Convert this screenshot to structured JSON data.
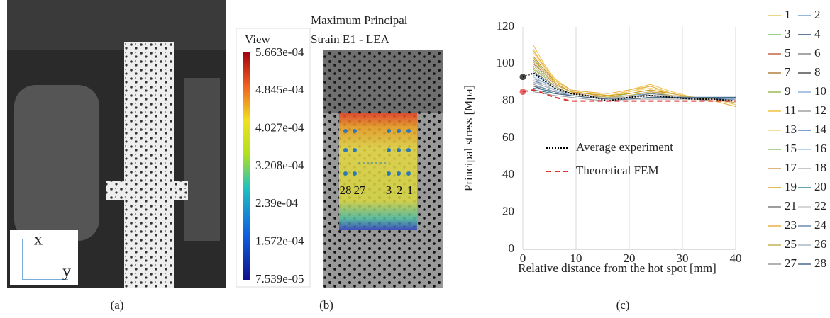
{
  "panels": {
    "a": {
      "caption": "(a)",
      "axis_x": "x",
      "axis_y": "y"
    },
    "b": {
      "caption": "(b)",
      "title_lines": [
        "Maximum Principal",
        "Strain E1 - LEA"
      ],
      "colorbar_title": "View",
      "colorbar_labels": [
        "5.663e-04",
        "4.845e-04",
        "4.027e-04",
        "3.208e-04",
        "2.39e-04",
        "1.572e-04",
        "7.539e-05"
      ],
      "point_labels": [
        "28",
        "27",
        "3",
        "2",
        "1"
      ]
    },
    "c": {
      "caption": "(c)"
    }
  },
  "chart_data": {
    "type": "line",
    "xlabel": "Relative distance from the hot spot [mm]",
    "ylabel": "Principal stress [Mpa]",
    "xlim": [
      0,
      40
    ],
    "xticks": [
      0,
      10,
      20,
      30,
      40
    ],
    "ylim": [
      0,
      120
    ],
    "yticks": [
      0,
      20,
      40,
      60,
      80,
      100,
      120
    ],
    "grid": "x",
    "x": [
      0,
      2,
      4,
      6,
      9,
      12,
      16,
      20,
      24,
      28,
      32,
      36,
      40
    ],
    "series": [
      {
        "name": "1",
        "color": "#e6c65a",
        "values": [
          null,
          108,
          98,
          90,
          85,
          84,
          83,
          85,
          88,
          84,
          82,
          81,
          78
        ]
      },
      {
        "name": "2",
        "color": "#6f9fd0",
        "values": [
          null,
          95,
          92,
          88,
          84,
          83,
          82,
          83,
          84,
          83,
          82,
          81,
          80
        ]
      },
      {
        "name": "3",
        "color": "#7dbf6a",
        "values": [
          null,
          102,
          96,
          90,
          85,
          84,
          82,
          84,
          86,
          84,
          82,
          81,
          79
        ]
      },
      {
        "name": "4",
        "color": "#2f4f7f",
        "values": [
          null,
          90,
          88,
          86,
          83,
          82,
          81,
          82,
          83,
          82,
          81,
          81,
          80
        ]
      },
      {
        "name": "5",
        "color": "#c0694a",
        "values": [
          null,
          100,
          95,
          89,
          85,
          83,
          82,
          83,
          85,
          83,
          82,
          81,
          79
        ]
      },
      {
        "name": "6",
        "color": "#8a8a8a",
        "values": [
          null,
          92,
          90,
          87,
          84,
          83,
          82,
          82,
          83,
          82,
          82,
          81,
          81
        ]
      },
      {
        "name": "7",
        "color": "#b08040",
        "values": [
          null,
          104,
          97,
          91,
          86,
          85,
          83,
          84,
          86,
          84,
          82,
          81,
          78
        ]
      },
      {
        "name": "8",
        "color": "#505050",
        "values": [
          null,
          88,
          86,
          85,
          83,
          82,
          81,
          81,
          82,
          82,
          81,
          81,
          82
        ]
      },
      {
        "name": "9",
        "color": "#9bbb59",
        "values": [
          null,
          97,
          93,
          88,
          84,
          83,
          81,
          82,
          84,
          83,
          82,
          81,
          80
        ]
      },
      {
        "name": "10",
        "color": "#8fb4dc",
        "values": [
          null,
          93,
          90,
          87,
          84,
          83,
          82,
          82,
          83,
          82,
          82,
          82,
          81
        ]
      },
      {
        "name": "11",
        "color": "#f0c040",
        "values": [
          null,
          110,
          100,
          92,
          86,
          84,
          82,
          86,
          89,
          85,
          82,
          80,
          77
        ]
      },
      {
        "name": "12",
        "color": "#a0a0a0",
        "values": [
          null,
          89,
          87,
          85,
          83,
          82,
          81,
          81,
          82,
          82,
          81,
          80,
          81
        ]
      },
      {
        "name": "13",
        "color": "#f2d67a",
        "values": [
          null,
          106,
          98,
          91,
          86,
          85,
          83,
          85,
          87,
          84,
          82,
          81,
          78
        ]
      },
      {
        "name": "14",
        "color": "#4f81bd",
        "values": [
          null,
          91,
          89,
          86,
          83,
          82,
          81,
          82,
          83,
          82,
          82,
          81,
          82
        ]
      },
      {
        "name": "15",
        "color": "#92c47d",
        "values": [
          null,
          99,
          94,
          89,
          85,
          84,
          82,
          83,
          85,
          83,
          82,
          81,
          80
        ]
      },
      {
        "name": "16",
        "color": "#9dc3e6",
        "values": [
          null,
          94,
          91,
          87,
          84,
          83,
          81,
          82,
          84,
          83,
          82,
          82,
          81
        ]
      },
      {
        "name": "17",
        "color": "#d69a5a",
        "values": [
          null,
          101,
          95,
          89,
          85,
          84,
          82,
          83,
          85,
          84,
          82,
          81,
          79
        ]
      },
      {
        "name": "18",
        "color": "#b7b7b7",
        "values": [
          null,
          90,
          88,
          86,
          84,
          83,
          82,
          82,
          83,
          82,
          81,
          81,
          81
        ]
      },
      {
        "name": "19",
        "color": "#d4a017",
        "values": [
          null,
          103,
          96,
          90,
          85,
          84,
          83,
          84,
          86,
          84,
          82,
          81,
          79
        ]
      },
      {
        "name": "20",
        "color": "#31859c",
        "values": [
          null,
          87,
          86,
          84,
          83,
          82,
          81,
          81,
          82,
          82,
          81,
          82,
          82
        ]
      },
      {
        "name": "21",
        "color": "#7f7f7f",
        "values": [
          null,
          96,
          92,
          88,
          84,
          83,
          81,
          82,
          84,
          83,
          82,
          81,
          80
        ]
      },
      {
        "name": "22",
        "color": "#c9c9c9",
        "values": [
          null,
          92,
          89,
          86,
          83,
          82,
          81,
          82,
          83,
          83,
          82,
          81,
          81
        ]
      },
      {
        "name": "23",
        "color": "#e8b04a",
        "values": [
          null,
          107,
          99,
          91,
          86,
          85,
          84,
          86,
          88,
          84,
          82,
          80,
          77
        ]
      },
      {
        "name": "24",
        "color": "#6a8caf",
        "values": [
          null,
          88,
          87,
          85,
          83,
          82,
          81,
          81,
          82,
          82,
          82,
          81,
          81
        ]
      },
      {
        "name": "25",
        "color": "#c5b358",
        "values": [
          null,
          98,
          93,
          88,
          84,
          83,
          82,
          83,
          85,
          83,
          82,
          81,
          79
        ]
      },
      {
        "name": "26",
        "color": "#aab7c4",
        "values": [
          null,
          91,
          88,
          86,
          83,
          82,
          81,
          81,
          82,
          82,
          81,
          81,
          80
        ]
      },
      {
        "name": "27",
        "color": "#999999",
        "values": [
          null,
          85,
          84,
          83,
          82,
          81,
          80,
          81,
          81,
          81,
          81,
          81,
          80
        ]
      },
      {
        "name": "28",
        "color": "#4a6a8a",
        "values": [
          null,
          86,
          85,
          84,
          83,
          82,
          81,
          81,
          82,
          82,
          82,
          82,
          82
        ]
      },
      {
        "name": "Average experiment",
        "color": "#000000",
        "dash": "dotted",
        "marker": "circle",
        "values": [
          93,
          95,
          91,
          87,
          84,
          83,
          80,
          82,
          83,
          82,
          81,
          81,
          80
        ]
      },
      {
        "name": "Theoretical FEM",
        "color": "#e03030",
        "dash": "dashed",
        "marker": "circle",
        "values": [
          85,
          86,
          84,
          82,
          80,
          80,
          80,
          80,
          80,
          80,
          80,
          80,
          80
        ]
      }
    ]
  }
}
